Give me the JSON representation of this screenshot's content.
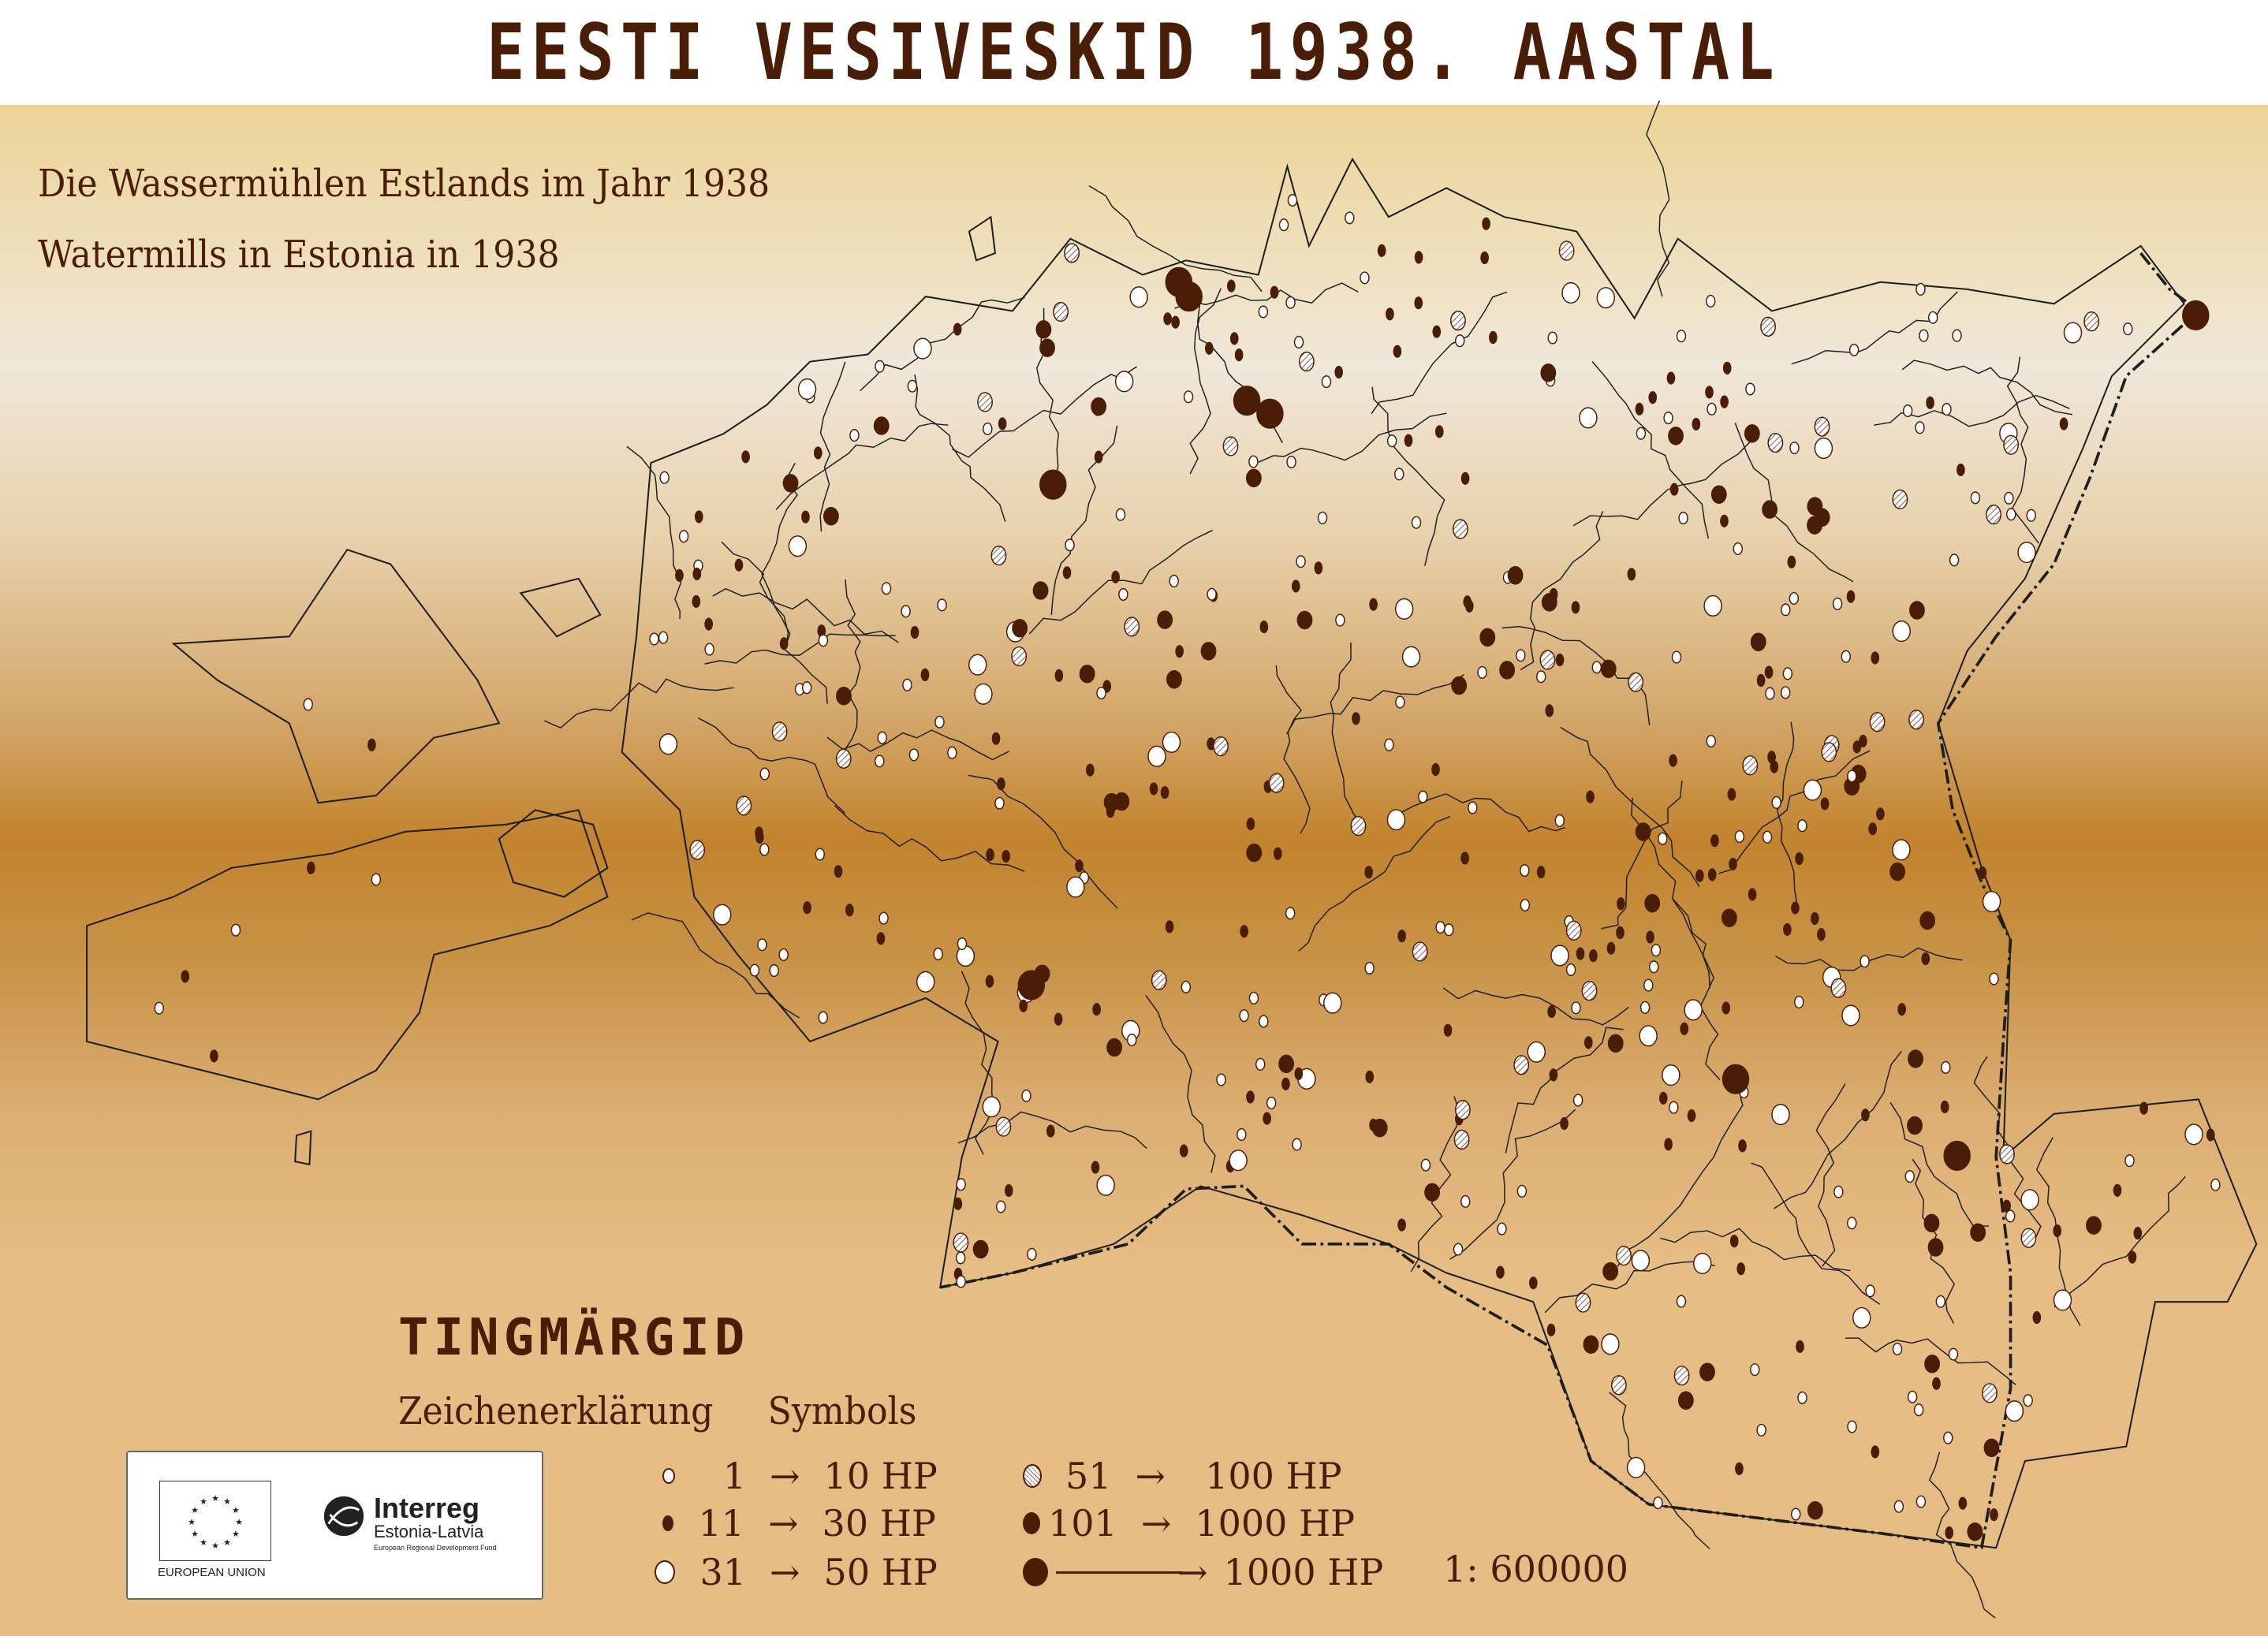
{
  "title": "EESTI VESIVESKID 1938. AASTAL",
  "subtitles": [
    "Die Wassermühlen Estlands im Jahr 1938",
    "Watermills in Estonia in 1938"
  ],
  "legend": {
    "title": "TINGMÄRGID",
    "subtitle_de": "Zeichenerklärung",
    "subtitle_en": "Symbols",
    "items": [
      {
        "from": "1",
        "to": "10 HP",
        "symbol": "small-white-circle"
      },
      {
        "from": "11",
        "to": "30 HP",
        "symbol": "small-brown-dot"
      },
      {
        "from": "31",
        "to": "50 HP",
        "symbol": "large-white-circle"
      },
      {
        "from": "51",
        "to": "100 HP",
        "symbol": "hatched-circle"
      },
      {
        "from": "101",
        "to": "1000 HP",
        "symbol": "brown-dot"
      },
      {
        "from": "",
        "to": "1000 HP",
        "symbol": "large-brown-dot"
      }
    ],
    "arrow": "→",
    "scale": "1: 600000"
  },
  "logos": {
    "eu": "EUROPEAN UNION",
    "interreg": "Interreg",
    "interreg_sub": "Estonia-Latvia",
    "interreg_fund": "European Regional Development Fund"
  },
  "colors": {
    "brown": "#4a1d06",
    "river": "#1e1e1e",
    "white_mill": "#ffffff",
    "hatched": "#d9c8b8"
  }
}
